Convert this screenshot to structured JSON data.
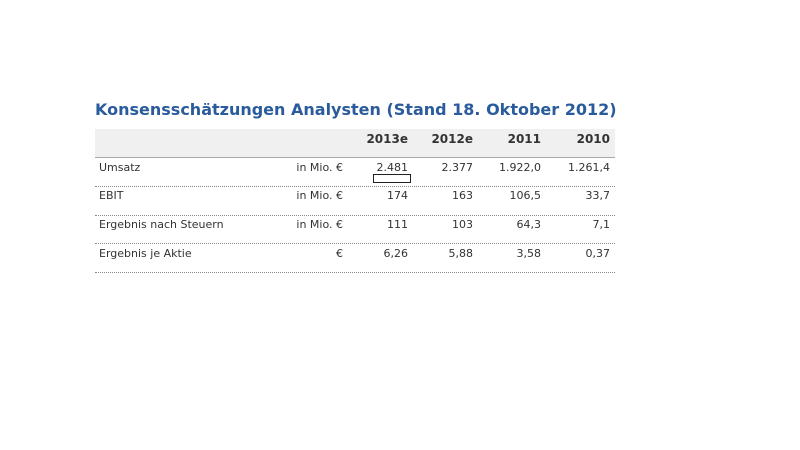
{
  "title": "Konsensschätzungen Analysten (Stand 18. Oktober 2012)",
  "table": {
    "headers": [
      "2013e",
      "2012e",
      "2011",
      "2010"
    ],
    "rows": [
      {
        "label": "Umsatz",
        "unit": "in Mio. €",
        "values": [
          "2.481",
          "2.377",
          "1.922,0",
          "1.261,4"
        ]
      },
      {
        "label": "EBIT",
        "unit": "in Mio. €",
        "values": [
          "174",
          "163",
          "106,5",
          "33,7"
        ]
      },
      {
        "label": "Ergebnis nach Steuern",
        "unit": "in Mio. €",
        "values": [
          "111",
          "103",
          "64,3",
          "7,1"
        ]
      },
      {
        "label": "Ergebnis je Aktie",
        "unit": "€",
        "values": [
          "6,26",
          "5,88",
          "3,58",
          "0,37"
        ]
      }
    ]
  }
}
